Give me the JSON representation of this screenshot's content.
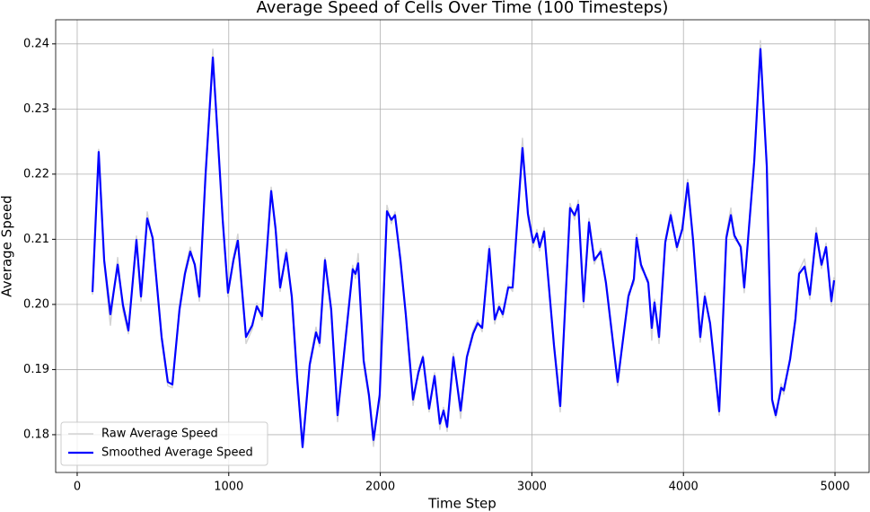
{
  "chart_data": {
    "type": "line",
    "title": "Average Speed of Cells Over Time (100 Timesteps)",
    "x_label": "Time Step",
    "y_label": "Average Speed",
    "x": [
      101,
      142,
      178,
      219,
      267,
      302,
      338,
      391,
      421,
      462,
      498,
      557,
      598,
      628,
      675,
      711,
      746,
      776,
      806,
      847,
      895,
      930,
      960,
      995,
      1031,
      1060,
      1114,
      1155,
      1185,
      1220,
      1280,
      1309,
      1339,
      1380,
      1416,
      1451,
      1487,
      1534,
      1576,
      1599,
      1635,
      1676,
      1718,
      1753,
      1818,
      1836,
      1854,
      1890,
      1925,
      1955,
      1996,
      2044,
      2073,
      2097,
      2133,
      2168,
      2216,
      2251,
      2281,
      2322,
      2358,
      2393,
      2417,
      2441,
      2482,
      2530,
      2571,
      2612,
      2642,
      2672,
      2719,
      2755,
      2784,
      2808,
      2844,
      2873,
      2938,
      2974,
      3009,
      3033,
      3051,
      3081,
      3146,
      3187,
      3252,
      3282,
      3306,
      3341,
      3377,
      3412,
      3454,
      3489,
      3566,
      3637,
      3673,
      3691,
      3720,
      3768,
      3791,
      3809,
      3839,
      3880,
      3916,
      3957,
      3993,
      4028,
      4064,
      4111,
      4141,
      4176,
      4236,
      4283,
      4313,
      4336,
      4378,
      4401,
      4467,
      4508,
      4550,
      4585,
      4609,
      4645,
      4662,
      4704,
      4739,
      4763,
      4799,
      4834,
      4876,
      4911,
      4941,
      4976,
      4994
    ],
    "series": [
      {
        "name": "Raw Average Speed",
        "color": "#d3d3d3",
        "values": [
          0.2015,
          0.2238,
          0.2062,
          0.1968,
          0.2072,
          0.199,
          0.1955,
          0.2105,
          0.2005,
          0.2142,
          0.2098,
          0.1945,
          0.1875,
          0.1872,
          0.1998,
          0.2052,
          0.2088,
          0.2056,
          0.2005,
          0.2205,
          0.2392,
          0.224,
          0.2136,
          0.2012,
          0.2072,
          0.2108,
          0.194,
          0.1962,
          0.2002,
          0.1976,
          0.218,
          0.211,
          0.202,
          0.2085,
          0.2005,
          0.188,
          0.178,
          0.1912,
          0.1965,
          0.1935,
          0.2072,
          0.1985,
          0.182,
          0.1912,
          0.206,
          0.204,
          0.2078,
          0.1908,
          0.1855,
          0.1782,
          0.1866,
          0.2152,
          0.2124,
          0.2142,
          0.2062,
          0.198,
          0.1845,
          0.19,
          0.1922,
          0.1835,
          0.1895,
          0.1808,
          0.1842,
          0.1805,
          0.1925,
          0.1825,
          0.1922,
          0.196,
          0.1976,
          0.1958,
          0.209,
          0.197,
          0.2002,
          0.198,
          0.203,
          0.202,
          0.2255,
          0.2132,
          0.2088,
          0.2115,
          0.2082,
          0.2118,
          0.193,
          0.1835,
          0.2155,
          0.213,
          0.216,
          0.1995,
          0.2132,
          0.2062,
          0.2086,
          0.2028,
          0.1875,
          0.2018,
          0.2032,
          0.2108,
          0.2055,
          0.2038,
          0.1945,
          0.2008,
          0.194,
          0.21,
          0.2142,
          0.2082,
          0.2122,
          0.2192,
          0.2092,
          0.1942,
          0.2018,
          0.1965,
          0.183,
          0.2108,
          0.2148,
          0.21,
          0.2092,
          0.2018,
          0.2225,
          0.2405,
          0.2205,
          0.1848,
          0.1826,
          0.1878,
          0.1862,
          0.192,
          0.1972,
          0.2052,
          0.207,
          0.2008,
          0.2118,
          0.2055,
          0.2094,
          0.1998,
          0.2042
        ]
      },
      {
        "name": "Smoothed Average Speed",
        "color": "#0000ff",
        "values": [
          0.2019,
          0.2234,
          0.2068,
          0.1985,
          0.2061,
          0.1999,
          0.196,
          0.2099,
          0.2012,
          0.2132,
          0.2102,
          0.195,
          0.1881,
          0.1877,
          0.1992,
          0.2047,
          0.2081,
          0.2061,
          0.2012,
          0.2199,
          0.2379,
          0.2247,
          0.213,
          0.2018,
          0.2068,
          0.2098,
          0.195,
          0.1968,
          0.1997,
          0.1982,
          0.2174,
          0.2116,
          0.2026,
          0.2079,
          0.2012,
          0.1888,
          0.1781,
          0.1907,
          0.1957,
          0.1941,
          0.2068,
          0.1992,
          0.183,
          0.1907,
          0.2054,
          0.2047,
          0.2063,
          0.1914,
          0.1861,
          0.1792,
          0.1861,
          0.2143,
          0.213,
          0.2137,
          0.2068,
          0.1985,
          0.1854,
          0.1895,
          0.1919,
          0.184,
          0.189,
          0.1817,
          0.1837,
          0.1812,
          0.1919,
          0.1837,
          0.1919,
          0.1955,
          0.1971,
          0.1964,
          0.2085,
          0.1977,
          0.1996,
          0.1985,
          0.2026,
          0.2026,
          0.224,
          0.2139,
          0.2095,
          0.2109,
          0.2088,
          0.2112,
          0.1937,
          0.1844,
          0.2148,
          0.2137,
          0.2153,
          0.2005,
          0.2126,
          0.2068,
          0.2081,
          0.2033,
          0.1881,
          0.2012,
          0.2039,
          0.2102,
          0.2061,
          0.2033,
          0.1964,
          0.2003,
          0.195,
          0.2095,
          0.2137,
          0.2088,
          0.2116,
          0.2186,
          0.2098,
          0.195,
          0.2012,
          0.1971,
          0.1836,
          0.2102,
          0.2137,
          0.2106,
          0.2088,
          0.2026,
          0.2219,
          0.2392,
          0.2212,
          0.1854,
          0.183,
          0.1872,
          0.1868,
          0.1916,
          0.1978,
          0.2047,
          0.2058,
          0.2015,
          0.2109,
          0.2061,
          0.2088,
          0.2005,
          0.2037
        ]
      }
    ],
    "xlim": [
      -142,
      5225
    ],
    "ylim": [
      0.1742,
      0.2437
    ],
    "xticks": [
      0,
      1000,
      2000,
      3000,
      4000,
      5000
    ],
    "yticks": [
      0.18,
      0.19,
      {
        "value": 0.2,
        "label": "0.20"
      },
      0.21,
      0.22,
      0.23,
      0.24
    ],
    "grid": true,
    "legend": "lower left"
  }
}
